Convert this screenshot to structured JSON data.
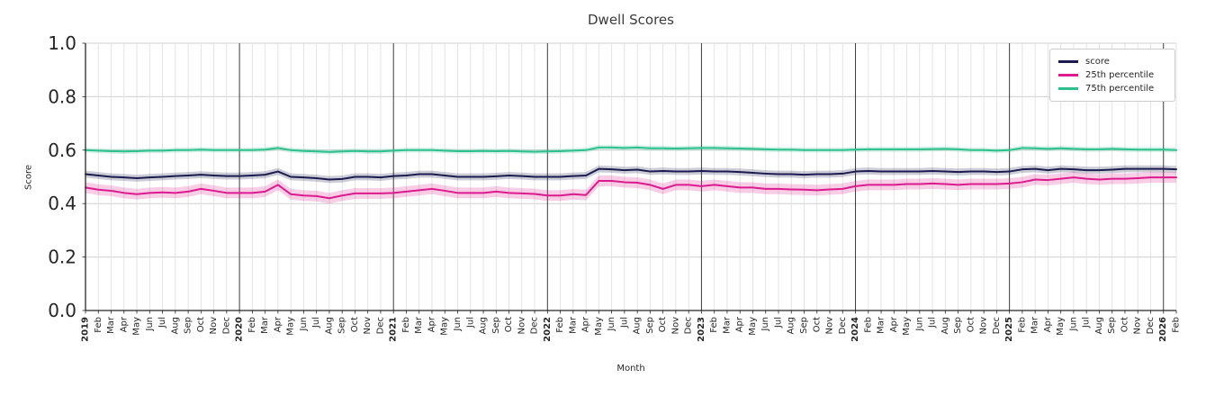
{
  "chart_data": {
    "type": "line",
    "title": "Dwell Scores",
    "xlabel": "Month",
    "ylabel": "Score",
    "ylim": [
      0.0,
      1.0
    ],
    "yticks": [
      0.0,
      0.2,
      0.4,
      0.6,
      0.8,
      1.0
    ],
    "grid": "on",
    "legend_position": "upper right",
    "x_labels": [
      "2019",
      "Feb",
      "Mar",
      "Apr",
      "May",
      "Jun",
      "Jul",
      "Aug",
      "Sep",
      "Oct",
      "Nov",
      "Dec",
      "2020",
      "Feb",
      "Mar",
      "Apr",
      "May",
      "Jun",
      "Jul",
      "Aug",
      "Sep",
      "Oct",
      "Nov",
      "Dec",
      "2021",
      "Feb",
      "Mar",
      "Apr",
      "May",
      "Jun",
      "Jul",
      "Aug",
      "Sep",
      "Oct",
      "Nov",
      "Dec",
      "2022",
      "Feb",
      "Mar",
      "Apr",
      "May",
      "Jun",
      "Jul",
      "Aug",
      "Sep",
      "Oct",
      "Nov",
      "Dec",
      "2023",
      "Feb",
      "Mar",
      "Apr",
      "May",
      "Jun",
      "Jul",
      "Aug",
      "Sep",
      "Oct",
      "Nov",
      "Dec",
      "2024",
      "Feb",
      "Mar",
      "Apr",
      "May",
      "Jun",
      "Jul",
      "Aug",
      "Sep",
      "Oct",
      "Nov",
      "Dec",
      "2025",
      "Feb",
      "Mar",
      "Apr",
      "May",
      "Jun",
      "Jul",
      "Aug",
      "Sep",
      "Oct",
      "Nov",
      "Dec",
      "2026",
      "Feb"
    ],
    "series": [
      {
        "name": "score",
        "color": "#1b1b4f",
        "band": 0.013,
        "values": [
          0.51,
          0.505,
          0.5,
          0.498,
          0.495,
          0.498,
          0.5,
          0.503,
          0.505,
          0.508,
          0.505,
          0.503,
          0.503,
          0.505,
          0.508,
          0.52,
          0.5,
          0.498,
          0.495,
          0.49,
          0.492,
          0.5,
          0.5,
          0.498,
          0.503,
          0.505,
          0.51,
          0.51,
          0.505,
          0.5,
          0.5,
          0.5,
          0.502,
          0.505,
          0.503,
          0.5,
          0.5,
          0.5,
          0.503,
          0.505,
          0.53,
          0.528,
          0.525,
          0.527,
          0.52,
          0.522,
          0.52,
          0.52,
          0.522,
          0.52,
          0.52,
          0.518,
          0.515,
          0.512,
          0.51,
          0.51,
          0.508,
          0.51,
          0.51,
          0.512,
          0.52,
          0.522,
          0.52,
          0.52,
          0.52,
          0.52,
          0.522,
          0.52,
          0.518,
          0.52,
          0.52,
          0.518,
          0.52,
          0.528,
          0.53,
          0.525,
          0.53,
          0.528,
          0.525,
          0.525,
          0.527,
          0.53,
          0.53,
          0.53,
          0.53,
          0.528
        ]
      },
      {
        "name": "25th percentile",
        "color": "#dd1a8e",
        "band": 0.02,
        "values": [
          0.46,
          0.452,
          0.448,
          0.44,
          0.435,
          0.44,
          0.442,
          0.44,
          0.445,
          0.455,
          0.448,
          0.44,
          0.44,
          0.44,
          0.445,
          0.47,
          0.435,
          0.43,
          0.428,
          0.42,
          0.43,
          0.438,
          0.438,
          0.438,
          0.44,
          0.445,
          0.45,
          0.455,
          0.448,
          0.44,
          0.44,
          0.44,
          0.445,
          0.44,
          0.438,
          0.436,
          0.43,
          0.43,
          0.435,
          0.432,
          0.485,
          0.485,
          0.48,
          0.478,
          0.47,
          0.455,
          0.47,
          0.47,
          0.465,
          0.47,
          0.465,
          0.46,
          0.46,
          0.455,
          0.455,
          0.453,
          0.452,
          0.45,
          0.453,
          0.455,
          0.465,
          0.47,
          0.47,
          0.47,
          0.473,
          0.473,
          0.475,
          0.473,
          0.47,
          0.473,
          0.473,
          0.473,
          0.475,
          0.48,
          0.49,
          0.488,
          0.493,
          0.498,
          0.493,
          0.49,
          0.493,
          0.493,
          0.495,
          0.498,
          0.498,
          0.498
        ]
      },
      {
        "name": "75th percentile",
        "color": "#2cc08c",
        "band": 0.009,
        "values": [
          0.6,
          0.598,
          0.596,
          0.595,
          0.596,
          0.598,
          0.598,
          0.6,
          0.6,
          0.602,
          0.6,
          0.6,
          0.6,
          0.6,
          0.602,
          0.608,
          0.6,
          0.597,
          0.595,
          0.593,
          0.595,
          0.597,
          0.595,
          0.595,
          0.598,
          0.6,
          0.6,
          0.6,
          0.598,
          0.596,
          0.596,
          0.597,
          0.596,
          0.597,
          0.595,
          0.594,
          0.595,
          0.596,
          0.598,
          0.6,
          0.61,
          0.61,
          0.608,
          0.61,
          0.607,
          0.607,
          0.606,
          0.607,
          0.608,
          0.608,
          0.607,
          0.606,
          0.605,
          0.603,
          0.602,
          0.602,
          0.6,
          0.6,
          0.6,
          0.6,
          0.602,
          0.603,
          0.603,
          0.603,
          0.603,
          0.603,
          0.604,
          0.605,
          0.603,
          0.6,
          0.6,
          0.598,
          0.6,
          0.608,
          0.607,
          0.605,
          0.607,
          0.605,
          0.603,
          0.603,
          0.605,
          0.603,
          0.602,
          0.602,
          0.602,
          0.6
        ]
      }
    ]
  }
}
